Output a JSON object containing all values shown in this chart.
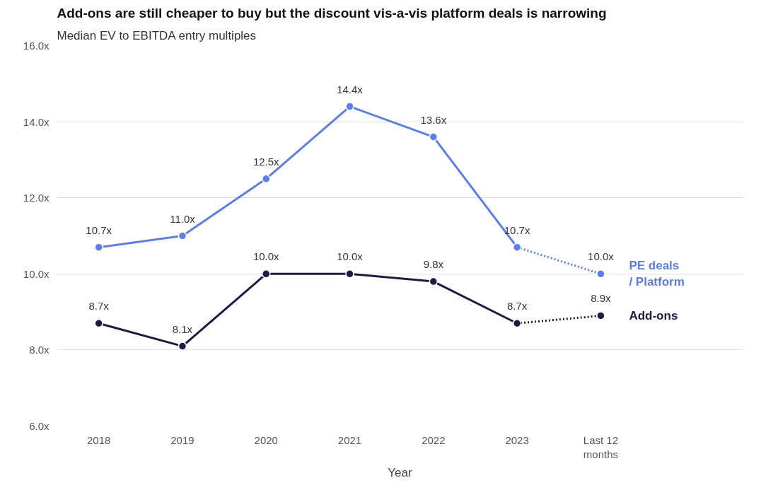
{
  "chart_data": {
    "type": "line",
    "title": "Add-ons are still cheaper to buy but the discount vis-a-vis platform deals is narrowing",
    "subtitle": "Median EV to EBITDA entry multiples",
    "xlabel": "Year",
    "categories": [
      "2018",
      "2019",
      "2020",
      "2021",
      "2022",
      "2023",
      "Last 12\nmonths"
    ],
    "series": [
      {
        "name": "PE deals / Platform",
        "color": "#5b7cf5",
        "line_style": "solid",
        "values": [
          10.7,
          11.0,
          12.5,
          14.4,
          13.6,
          10.7,
          null
        ],
        "value_labels": [
          "10.7x",
          "11.0x",
          "12.5x",
          "14.4x",
          "13.6x",
          "10.7x",
          null
        ]
      },
      {
        "color": "#5b7cf5",
        "line_style": "dotted",
        "values": [
          null,
          null,
          null,
          null,
          null,
          10.7,
          10.0
        ],
        "value_labels": [
          null,
          null,
          null,
          null,
          null,
          null,
          "10.0x"
        ]
      },
      {
        "name": "Add-ons",
        "color": "#1f1a45",
        "line_style": "solid",
        "values": [
          8.7,
          8.1,
          10.0,
          10.0,
          9.8,
          8.7,
          null
        ],
        "value_labels": [
          "8.7x",
          "8.1x",
          "10.0x",
          "10.0x",
          "9.8x",
          "8.7x",
          null
        ]
      },
      {
        "color": "#1f1a45",
        "line_style": "dotted",
        "values": [
          null,
          null,
          null,
          null,
          null,
          8.7,
          8.9
        ],
        "value_labels": [
          null,
          null,
          null,
          null,
          null,
          null,
          "8.9x"
        ]
      }
    ],
    "ylim": [
      6,
      16
    ],
    "yticks": [
      {
        "value": 6,
        "label": "6.0x"
      },
      {
        "value": 8,
        "label": "8.0x"
      },
      {
        "value": 10,
        "label": "10.0x"
      },
      {
        "value": 12,
        "label": "12.0x"
      },
      {
        "value": 14,
        "label": "14.0x"
      },
      {
        "value": 16,
        "label": "16.0x"
      }
    ],
    "grid": "y",
    "marker": "circle"
  }
}
